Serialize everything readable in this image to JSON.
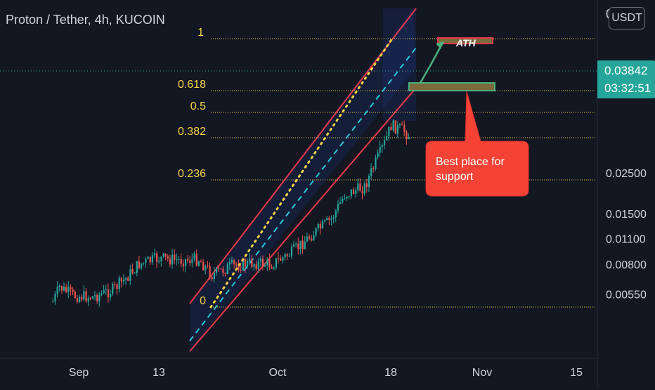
{
  "header": {
    "title": "Proton / Tether, 4h, KUCOIN"
  },
  "currency": {
    "label": "USDT",
    "peek": "0"
  },
  "price_tag": {
    "price": "0.03842",
    "countdown": "03:32:51"
  },
  "annotations": {
    "ath": "ATH",
    "callout_line1": "Best place for",
    "callout_line2": "support"
  },
  "colors": {
    "background": "#131722",
    "fib": "#f7d547",
    "channel": "#e8394a",
    "up": "#26a69a",
    "down": "#ef5350",
    "callout": "#f44336",
    "zone": "#7a6a3c",
    "arrow": "#4caf7d"
  },
  "chart_data": {
    "type": "candlestick",
    "symbol": "Proton / Tether",
    "interval": "4h",
    "exchange": "KUCOIN",
    "y_scale": "log",
    "y_ticks": [
      "0.02500",
      "0.01500",
      "0.01100",
      "0.00800",
      "0.00550"
    ],
    "x_ticks": [
      "Sep",
      "13",
      "Oct",
      "18",
      "Nov",
      "15"
    ],
    "fib_levels": [
      {
        "label": "1"
      },
      {
        "label": "0.618"
      },
      {
        "label": "0.5"
      },
      {
        "label": "0.382"
      },
      {
        "label": "0.236"
      },
      {
        "label": "0"
      }
    ],
    "last_price": 0.03842,
    "price_path": [
      {
        "date": "Aug 28",
        "price": 0.005
      },
      {
        "date": "Aug 29",
        "price": 0.006
      },
      {
        "date": "Aug 31",
        "price": 0.0054
      },
      {
        "date": "Sep 3",
        "price": 0.0053
      },
      {
        "date": "Sep 6",
        "price": 0.0058
      },
      {
        "date": "Sep 8",
        "price": 0.0067
      },
      {
        "date": "Sep 10",
        "price": 0.008
      },
      {
        "date": "Sep 13",
        "price": 0.0086
      },
      {
        "date": "Sep 16",
        "price": 0.0084
      },
      {
        "date": "Sep 19",
        "price": 0.0085
      },
      {
        "date": "Sep 21",
        "price": 0.007
      },
      {
        "date": "Sep 24",
        "price": 0.0078
      },
      {
        "date": "Sep 27",
        "price": 0.0081
      },
      {
        "date": "Sep 30",
        "price": 0.008
      },
      {
        "date": "Oct 3",
        "price": 0.0092
      },
      {
        "date": "Oct 6",
        "price": 0.0115
      },
      {
        "date": "Oct 9",
        "price": 0.014
      },
      {
        "date": "Oct 11",
        "price": 0.019
      },
      {
        "date": "Oct 14",
        "price": 0.021
      },
      {
        "date": "Oct 17",
        "price": 0.036
      },
      {
        "date": "Oct 18",
        "price": 0.045
      },
      {
        "date": "Oct 20",
        "price": 0.042
      },
      {
        "date": "Oct 21",
        "price": 0.0384
      }
    ]
  }
}
